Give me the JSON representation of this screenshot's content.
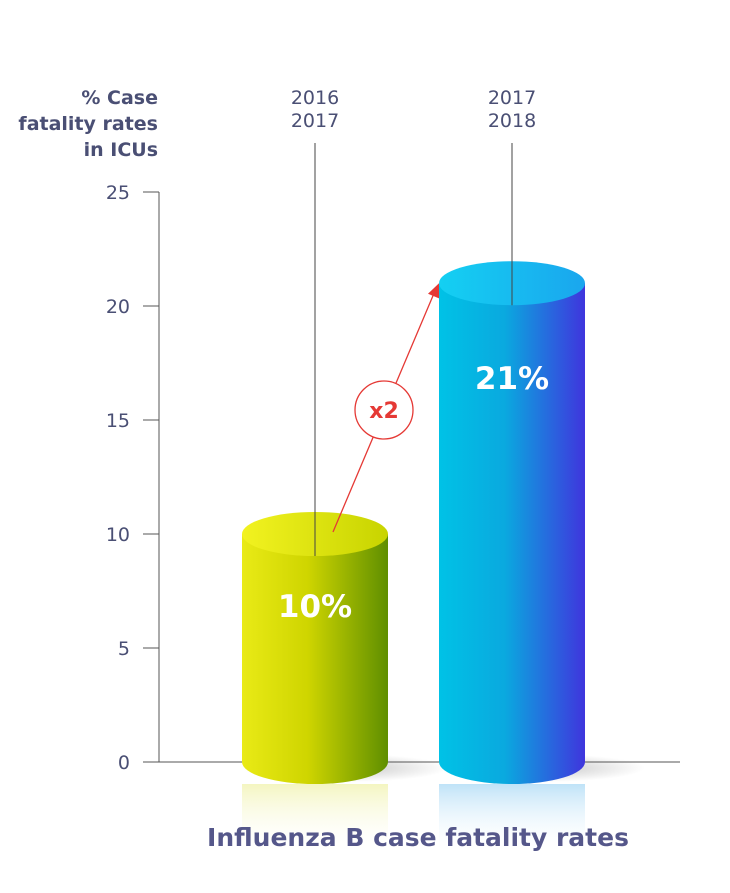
{
  "chart_data": {
    "type": "bar",
    "title": "Influenza B case fatality rates",
    "ylabel": [
      "% Case",
      "fatality rates",
      "in ICUs"
    ],
    "xlabel": "",
    "ylim": [
      0,
      25
    ],
    "yticks": [
      0,
      5,
      10,
      15,
      20,
      25
    ],
    "grid": false,
    "categories": [
      [
        "2016",
        "2017"
      ],
      [
        "2017",
        "2018"
      ]
    ],
    "values": [
      10,
      21
    ],
    "data_labels": [
      "10%",
      "21%"
    ],
    "annotation": "x2",
    "colors": {
      "bar1_light": "#e2e400",
      "bar1_dark": "#5f8f00",
      "bar2_light": "#00c2e6",
      "bar2_mid": "#0aa9df",
      "bar2_dark": "#3f35dd",
      "axis_text": "#4a4f74",
      "title": "#55578a",
      "arrow": "#e53935"
    }
  }
}
